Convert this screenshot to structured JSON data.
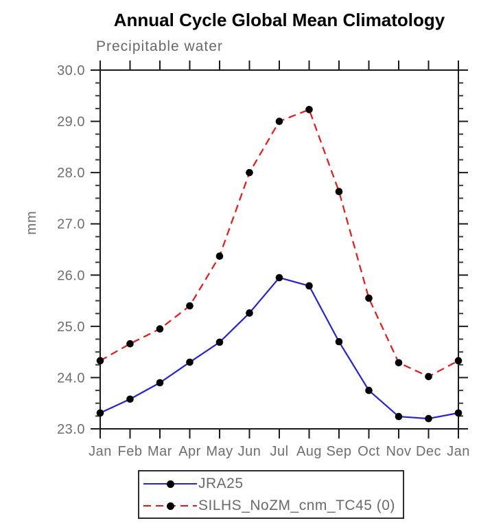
{
  "chart_data": {
    "type": "line",
    "title": "Annual Cycle Global Mean Climatology",
    "subtitle": "Precipitable water",
    "ylabel": "mm",
    "x_categories": [
      "Jan",
      "Feb",
      "Mar",
      "Apr",
      "May",
      "Jun",
      "Jul",
      "Aug",
      "Sep",
      "Oct",
      "Nov",
      "Dec",
      "Jan"
    ],
    "ylim": [
      23.0,
      30.0
    ],
    "ytick_step": 1.0,
    "ytick_minor_step": 0.25,
    "yticks": [
      {
        "v": 23.0,
        "label": "23.0"
      },
      {
        "v": 24.0,
        "label": "24.0"
      },
      {
        "v": 25.0,
        "label": "25.0"
      },
      {
        "v": 26.0,
        "label": "26.0"
      },
      {
        "v": 27.0,
        "label": "27.0"
      },
      {
        "v": 28.0,
        "label": "28.0"
      },
      {
        "v": 29.0,
        "label": "29.0"
      },
      {
        "v": 30.0,
        "label": "30.0"
      }
    ],
    "grid": false,
    "legend_position": "bottom",
    "axis_color": "#1a1a1a",
    "tick_label_color": "#6e6e6e",
    "series": [
      {
        "name": "JRA25",
        "color": "#2222dd",
        "line_style": "solid",
        "marker": "filled-circle",
        "marker_color": "#000000",
        "values": [
          23.31,
          23.58,
          23.9,
          24.3,
          24.69,
          25.26,
          25.95,
          25.79,
          24.7,
          23.75,
          23.24,
          23.2,
          23.31
        ]
      },
      {
        "name": "SILHS_NoZM_cnm_TC45 (0)",
        "color": "#ee1512",
        "line_style": "dashed",
        "marker": "filled-circle",
        "marker_color": "#000000",
        "values": [
          24.33,
          24.66,
          24.95,
          25.4,
          26.37,
          28.0,
          29.0,
          29.23,
          27.63,
          25.55,
          24.29,
          24.02,
          24.33
        ]
      }
    ]
  }
}
